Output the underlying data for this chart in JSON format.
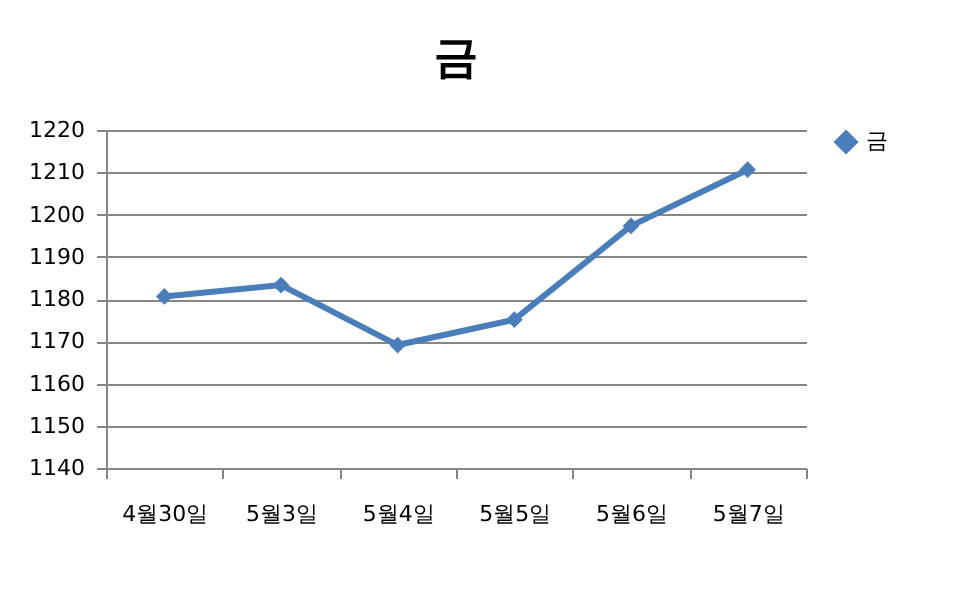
{
  "chart_data": {
    "type": "line",
    "title": "금",
    "categories": [
      "4월30일",
      "5월3일",
      "5월4일",
      "5월5일",
      "5월6일",
      "5월7일"
    ],
    "series": [
      {
        "name": "금",
        "color": "#4a7ebb",
        "values": [
          1180.6,
          1183.3,
          1169.1,
          1175.1,
          1197.3,
          1210.6
        ]
      }
    ],
    "ylim": [
      1140,
      1220
    ],
    "yticks": [
      1140,
      1150,
      1160,
      1170,
      1180,
      1190,
      1200,
      1210,
      1220
    ],
    "grid": "y",
    "legend": "right",
    "marker": "diamond",
    "line_style": "solid"
  }
}
